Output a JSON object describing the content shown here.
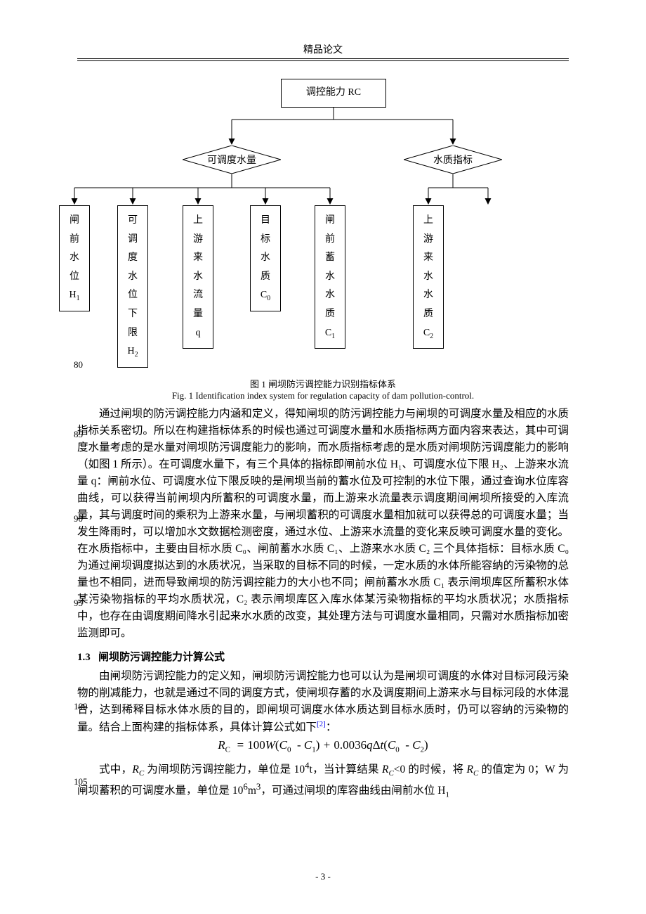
{
  "header": {
    "title": "精品论文"
  },
  "flowchart": {
    "type": "tree",
    "root": {
      "label": "调控能力 RC"
    },
    "diamonds": [
      {
        "label": "可调度水量"
      },
      {
        "label": "水质指标"
      }
    ],
    "leaves": [
      {
        "lines": [
          "闸",
          "前",
          "水",
          "位"
        ],
        "symbol": "H",
        "sub": "1"
      },
      {
        "lines": [
          "可",
          "调",
          "度",
          "水",
          "位",
          "下",
          "限"
        ],
        "symbol": "H",
        "sub": "2"
      },
      {
        "lines": [
          "上",
          "游",
          "来",
          "水",
          "流",
          "量"
        ],
        "symbol": "q",
        "sub": ""
      },
      {
        "lines": [
          "目",
          "标",
          "水",
          "质"
        ],
        "symbol": "C",
        "sub": "0"
      },
      {
        "lines": [
          "闸",
          "前",
          "蓄",
          "水",
          "水",
          "质"
        ],
        "symbol": "C",
        "sub": "1"
      },
      {
        "lines": [
          "上",
          "游",
          "来",
          "水",
          "水",
          "质"
        ],
        "symbol": "C",
        "sub": "2"
      }
    ],
    "caption_zh": "图 1  闸坝防污调控能力识别指标体系",
    "caption_en": "Fig. 1 Identification index system for regulation capacity of dam pollution-control."
  },
  "line_numbers": {
    "n80": "80",
    "n85": "85",
    "n90": "90",
    "n95": "95",
    "n100": "100",
    "n105": "105"
  },
  "paragraphs": {
    "p1": "通过闸坝的防污调控能力内涵和定义，得知闸坝的防污调控能力与闸坝的可调度水量及相应的水质指标关系密切。所以在构建指标体系的时候也通过可调度水量和水质指标两方面内容来表达，其中可调度水量考虑的是水量对闸坝防污调度能力的影响，而水质指标考虑的是水质对闸坝防污调度能力的影响（如图 1 所示）。在可调度水量下，有三个具体的指标即闸前水位 H₁、可调度水位下限 H₂、上游来水流量 q：闸前水位、可调度水位下限反映的是闸坝当前的蓄水位及可控制的水位下限，通过查询水位库容曲线，可以获得当前闸坝内所蓄积的可调度水量，而上游来水流量表示调度期间闸坝所接受的入库流量，其与调度时间的乘积为上游来水量，与闸坝蓄积的可调度水量相加就可以获得总的可调度水量；当发生降雨时，可以增加水文数据检测密度，通过水位、上游来水流量的变化来反映可调度水量的变化。在水质指标中，主要由目标水质 C₀、闸前蓄水水质 C₁、上游来水水质 C₂ 三个具体指标：目标水质 C₀ 为通过闸坝调度拟达到的水质状况，当采取的目标不同的时候，一定水质的水体所能容纳的污染物的总量也不相同，进而导致闸坝的防污调控能力的大小也不同；闸前蓄水水质 C₁ 表示闸坝库区所蓄积水体某污染物指标的平均水质状况，C₂ 表示闸坝库区入库水体某污染物指标的平均水质状况；水质指标中，也存在由调度期间降水引起来水水质的改变，其处理方法与可调度水量相同，只需对水质指标加密监测即可。",
    "p2": "由闸坝防污调控能力的定义知，闸坝防污调控能力也可以认为是闸坝可调度的水体对目标河段污染物的削减能力，也就是通过不同的调度方式，使闸坝存蓄的水及调度期间上游来水与目标河段的水体混合，达到稀释目标水体水质的目的，即闸坝可调度水体水质达到目标水质时，仍可以容纳的污染物的量。结合上面构建的指标体系，具体计算公式如下"
  },
  "section": {
    "num": "1.3",
    "title": "闸坝防污调控能力计算公式"
  },
  "formula": {
    "tex": "R_C = 100W(C_0 − C_1) + 0.0036qΔt(C_0 − C_2)"
  },
  "paragraphs2": {
    "p3a": "式中，",
    "p3b": "R",
    "p3b_sub": "C",
    "p3c": " 为闸坝防污调控能力，单位是 10",
    "p3d": "4",
    "p3e": "t，当计算结果 ",
    "p3f": "R",
    "p3f_sub": "C",
    "p3g": "<0 的时候，将 ",
    "p3h": "R",
    "p3h_sub": "C",
    "p3i": "的值定为 0；W 为闸坝蓄积的可调度水量，单位是 10",
    "p3j": "6",
    "p3k": "m",
    "p3l": "3",
    "p3m": "，可通过闸坝的库容曲线由闸前水位 H",
    "p3n": "1"
  },
  "ref_marker": "[2]",
  "page_number": "- 3 -"
}
